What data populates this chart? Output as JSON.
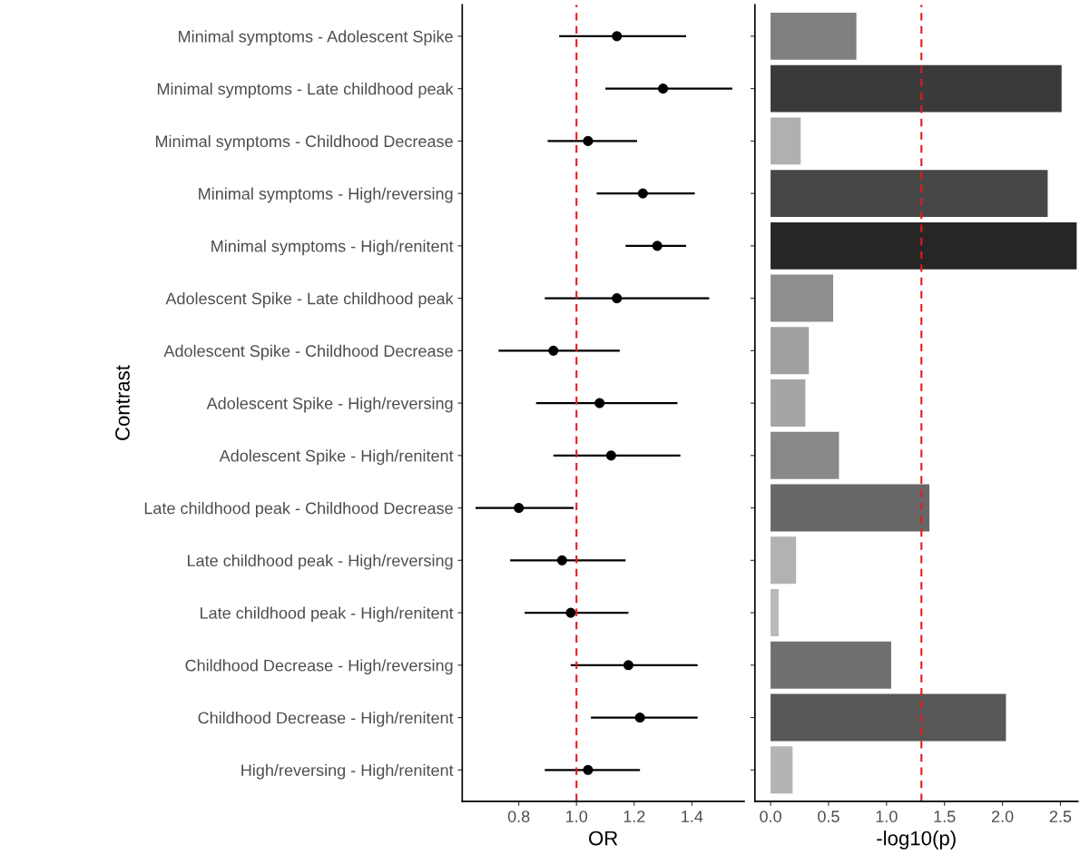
{
  "chart_data": [
    {
      "type": "scatter",
      "orientation": "horizontal",
      "xlabel": "OR",
      "ylabel": "Contrast",
      "marker": "circle",
      "grid": false,
      "legend": false,
      "categories": [
        "Minimal symptoms - Adolescent Spike",
        "Minimal symptoms - Late childhood peak",
        "Minimal symptoms - Childhood Decrease",
        "Minimal symptoms - High/reversing",
        "Minimal symptoms - High/renitent",
        "Adolescent Spike - Late childhood peak",
        "Adolescent Spike - Childhood Decrease",
        "Adolescent Spike - High/reversing",
        "Adolescent Spike - High/renitent",
        "Late childhood peak - Childhood Decrease",
        "Late childhood peak - High/reversing",
        "Late childhood peak - High/renitent",
        "Childhood Decrease - High/reversing",
        "Childhood Decrease - High/renitent",
        "High/reversing - High/renitent"
      ],
      "series": [
        {
          "color": "#000000",
          "values": [
            1.14,
            1.3,
            1.04,
            1.23,
            1.28,
            1.14,
            0.92,
            1.08,
            1.12,
            0.8,
            0.95,
            0.98,
            1.18,
            1.22,
            1.04
          ],
          "errors": [
            [
              0.94,
              1.38
            ],
            [
              1.1,
              1.54
            ],
            [
              0.9,
              1.21
            ],
            [
              1.07,
              1.41
            ],
            [
              1.17,
              1.38
            ],
            [
              0.89,
              1.46
            ],
            [
              0.73,
              1.15
            ],
            [
              0.86,
              1.35
            ],
            [
              0.92,
              1.36
            ],
            [
              0.65,
              0.99
            ],
            [
              0.77,
              1.17
            ],
            [
              0.82,
              1.18
            ],
            [
              0.98,
              1.42
            ],
            [
              1.05,
              1.42
            ],
            [
              0.89,
              1.22
            ]
          ]
        }
      ],
      "xlim": [
        0.604,
        1.581
      ],
      "xticks": [
        0.8,
        {
          "value": 1,
          "label": "1.0"
        },
        1.2,
        1.4
      ],
      "ref_lines": [
        {
          "axis": "x",
          "value": 1.0,
          "color": "#e41a1c",
          "line_style": "dashed"
        }
      ]
    },
    {
      "type": "bar",
      "orientation": "horizontal",
      "xlabel": "-log10(p)",
      "tick_labels": "x",
      "grid": false,
      "legend": false,
      "values": [
        0.74,
        2.51,
        0.26,
        2.39,
        2.64,
        0.54,
        0.33,
        0.3,
        0.59,
        1.37,
        0.22,
        0.07,
        1.04,
        2.03,
        0.19
      ],
      "colors": [
        "#7f7f7f",
        "#3a3a3a",
        "#b0b0b0",
        "#474747",
        "#262626",
        "#8e8e8e",
        "#a0a0a0",
        "#a5a5a5",
        "#888888",
        "#676767",
        "#b2b2b2",
        "#bababa",
        "#707070",
        "#575757",
        "#b4b4b4"
      ],
      "xlim": [
        -0.135,
        2.65
      ],
      "xticks": [
        {
          "value": 0,
          "label": "0.0"
        },
        0.5,
        {
          "value": 1,
          "label": "1.0"
        },
        1.5,
        {
          "value": 2,
          "label": "2.0"
        },
        2.5
      ],
      "ref_lines": [
        {
          "axis": "x",
          "value": 1.301,
          "color": "#e41a1c",
          "line_style": "dashed"
        }
      ]
    }
  ]
}
